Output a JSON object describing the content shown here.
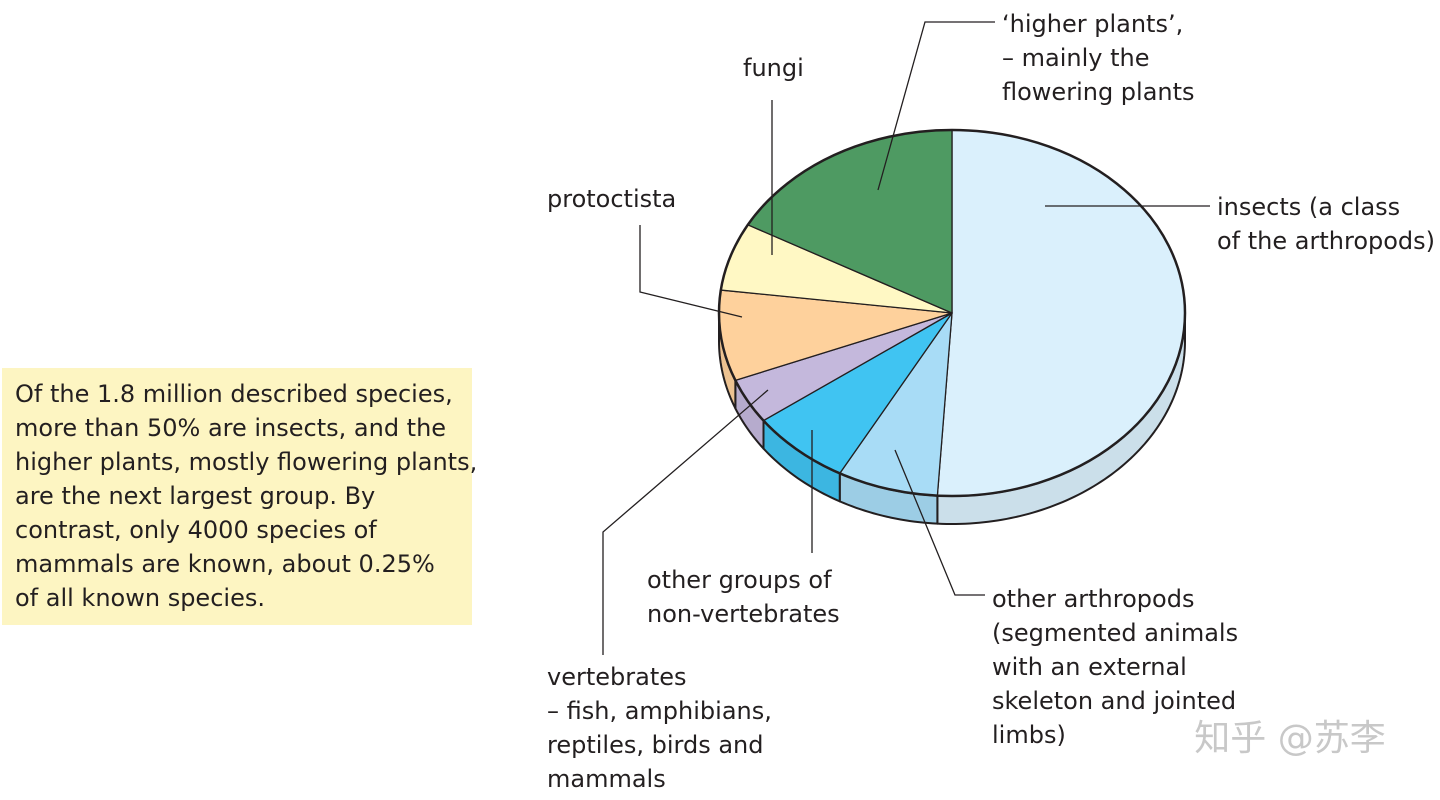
{
  "chart_data": {
    "type": "pie",
    "categories": [
      [
        "insects (a class",
        "of the arthropods)"
      ],
      [
        "other arthropods",
        "(segmented animals",
        "with an external",
        "skeleton and jointed",
        "limbs)"
      ],
      [
        "other groups of",
        "non-vertebrates"
      ],
      [
        "vertebrates",
        "– fish, amphibians,",
        "reptiles, birds and",
        "mammals"
      ],
      [
        "protoctista"
      ],
      [
        "fungi"
      ],
      [
        "‘higher plants’,",
        "– mainly the",
        "flowering plants"
      ]
    ],
    "values": [
      51,
      7,
      7,
      4,
      8,
      6,
      17
    ],
    "colors": [
      "#daf0fc",
      "#a8dcf6",
      "#40c4f2",
      "#c4b8dc",
      "#fed19c",
      "#fff8c4",
      "#4e9a62"
    ]
  },
  "note": [
    "Of the 1.8 million described species,",
    "more than 50% are insects, and the",
    "higher plants, mostly flowering plants,",
    "are the next largest group. By",
    "contrast, only 4000 species of",
    "mammals are known, about 0.25%",
    "of all known species."
  ],
  "watermark": "知乎 @苏李"
}
